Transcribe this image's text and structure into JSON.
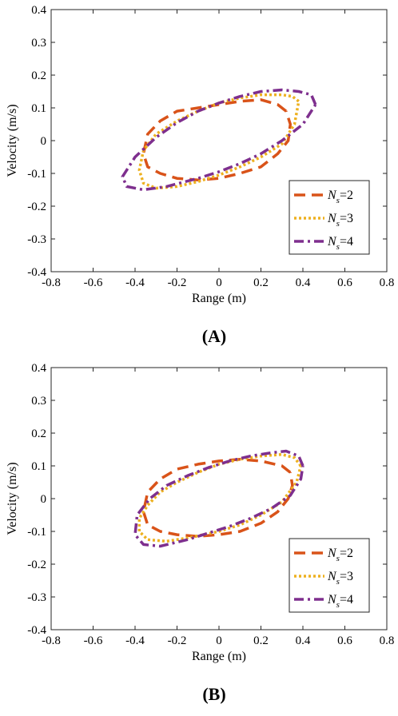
{
  "chart_data": [
    {
      "type": "line",
      "panel_label": "(A)",
      "xlabel": "Range (m)",
      "ylabel": "Velocity (m/s)",
      "xlim": [
        -0.8,
        0.8
      ],
      "ylim": [
        -0.4,
        0.4
      ],
      "xticks": [
        -0.8,
        -0.6,
        -0.4,
        -0.2,
        0,
        0.2,
        0.4,
        0.6,
        0.8
      ],
      "yticks": [
        -0.4,
        -0.3,
        -0.2,
        -0.1,
        0,
        0.1,
        0.2,
        0.3,
        0.4
      ],
      "xtick_labels": [
        "-0.8",
        "-0.6",
        "-0.4",
        "-0.2",
        "0",
        "0.2",
        "0.4",
        "0.6",
        "0.8"
      ],
      "ytick_labels": [
        "-0.4",
        "-0.3",
        "-0.2",
        "-0.1",
        "0",
        "0.1",
        "0.2",
        "0.3",
        "0.4"
      ],
      "legend_position": "bottom-right",
      "series": [
        {
          "legend_n": "N",
          "legend_sub": "s",
          "legend_rest": "=2",
          "color": "#D95319",
          "style": "dashed",
          "x": [
            0.32,
            0.28,
            0.2,
            0.1,
            0.0,
            -0.1,
            -0.2,
            -0.28,
            -0.34,
            -0.36,
            -0.34,
            -0.28,
            -0.2,
            -0.1,
            0.0,
            0.1,
            0.2,
            0.28,
            0.33,
            0.34,
            0.32
          ],
          "y": [
            0.09,
            0.11,
            0.125,
            0.12,
            0.11,
            0.1,
            0.09,
            0.06,
            0.02,
            -0.04,
            -0.08,
            -0.1,
            -0.115,
            -0.12,
            -0.115,
            -0.1,
            -0.08,
            -0.04,
            0.0,
            0.05,
            0.09
          ]
        },
        {
          "legend_n": "N",
          "legend_sub": "s",
          "legend_rest": "=3",
          "color": "#EDB120",
          "style": "dotted",
          "x": [
            0.38,
            0.35,
            0.3,
            0.2,
            0.1,
            0.0,
            -0.1,
            -0.2,
            -0.3,
            -0.36,
            -0.38,
            -0.36,
            -0.3,
            -0.2,
            -0.1,
            0.0,
            0.1,
            0.2,
            0.3,
            0.36,
            0.38
          ],
          "y": [
            0.12,
            0.135,
            0.14,
            0.14,
            0.13,
            0.115,
            0.09,
            0.06,
            0.02,
            -0.03,
            -0.09,
            -0.13,
            -0.145,
            -0.14,
            -0.125,
            -0.105,
            -0.08,
            -0.05,
            -0.01,
            0.05,
            0.12
          ]
        },
        {
          "legend_n": "N",
          "legend_sub": "s",
          "legend_rest": "=4",
          "color": "#7E2F8E",
          "style": "dashdot",
          "x": [
            0.46,
            0.44,
            0.38,
            0.3,
            0.2,
            0.1,
            0.0,
            -0.1,
            -0.2,
            -0.3,
            -0.4,
            -0.46,
            -0.44,
            -0.36,
            -0.25,
            -0.1,
            0.0,
            0.1,
            0.2,
            0.3,
            0.4,
            0.46
          ],
          "y": [
            0.11,
            0.14,
            0.15,
            0.155,
            0.15,
            0.135,
            0.115,
            0.09,
            0.055,
            0.01,
            -0.05,
            -0.11,
            -0.14,
            -0.15,
            -0.14,
            -0.115,
            -0.095,
            -0.07,
            -0.04,
            0.0,
            0.05,
            0.11
          ]
        }
      ]
    },
    {
      "type": "line",
      "panel_label": "(B)",
      "xlabel": "Range (m)",
      "ylabel": "Velocity (m/s)",
      "xlim": [
        -0.8,
        0.8
      ],
      "ylim": [
        -0.4,
        0.4
      ],
      "xticks": [
        -0.8,
        -0.6,
        -0.4,
        -0.2,
        0,
        0.2,
        0.4,
        0.6,
        0.8
      ],
      "yticks": [
        -0.4,
        -0.3,
        -0.2,
        -0.1,
        0,
        0.1,
        0.2,
        0.3,
        0.4
      ],
      "xtick_labels": [
        "-0.8",
        "-0.6",
        "-0.4",
        "-0.2",
        "0",
        "0.2",
        "0.4",
        "0.6",
        "0.8"
      ],
      "ytick_labels": [
        "-0.4",
        "-0.3",
        "-0.2",
        "-0.1",
        "0",
        "0.1",
        "0.2",
        "0.3",
        "0.4"
      ],
      "legend_position": "bottom-right",
      "series": [
        {
          "legend_n": "N",
          "legend_sub": "s",
          "legend_rest": "=2",
          "color": "#D95319",
          "style": "dashed",
          "x": [
            0.34,
            0.3,
            0.2,
            0.1,
            0.0,
            -0.1,
            -0.2,
            -0.28,
            -0.34,
            -0.36,
            -0.34,
            -0.28,
            -0.2,
            -0.1,
            0.0,
            0.1,
            0.2,
            0.28,
            0.33,
            0.35,
            0.34
          ],
          "y": [
            0.08,
            0.1,
            0.115,
            0.12,
            0.115,
            0.105,
            0.09,
            0.06,
            0.02,
            -0.04,
            -0.08,
            -0.1,
            -0.11,
            -0.115,
            -0.11,
            -0.1,
            -0.075,
            -0.04,
            0.0,
            0.04,
            0.08
          ]
        },
        {
          "legend_n": "N",
          "legend_sub": "s",
          "legend_rest": "=3",
          "color": "#EDB120",
          "style": "dotted",
          "x": [
            0.39,
            0.36,
            0.3,
            0.2,
            0.1,
            0.0,
            -0.1,
            -0.2,
            -0.28,
            -0.34,
            -0.38,
            -0.38,
            -0.34,
            -0.25,
            -0.15,
            0.0,
            0.1,
            0.2,
            0.3,
            0.37,
            0.39
          ],
          "y": [
            0.1,
            0.125,
            0.135,
            0.13,
            0.12,
            0.105,
            0.08,
            0.05,
            0.02,
            -0.02,
            -0.06,
            -0.1,
            -0.125,
            -0.13,
            -0.12,
            -0.1,
            -0.08,
            -0.05,
            -0.01,
            0.05,
            0.1
          ]
        },
        {
          "legend_n": "N",
          "legend_sub": "s",
          "legend_rest": "=4",
          "color": "#7E2F8E",
          "style": "dashdot",
          "x": [
            0.4,
            0.38,
            0.32,
            0.25,
            0.15,
            0.05,
            -0.05,
            -0.15,
            -0.25,
            -0.33,
            -0.39,
            -0.4,
            -0.36,
            -0.28,
            -0.15,
            -0.05,
            0.05,
            0.15,
            0.25,
            0.34,
            0.39,
            0.4
          ],
          "y": [
            0.1,
            0.13,
            0.145,
            0.14,
            0.13,
            0.115,
            0.095,
            0.07,
            0.04,
            0.0,
            -0.05,
            -0.11,
            -0.14,
            -0.145,
            -0.125,
            -0.105,
            -0.085,
            -0.06,
            -0.03,
            0.01,
            0.06,
            0.1
          ]
        }
      ]
    }
  ]
}
